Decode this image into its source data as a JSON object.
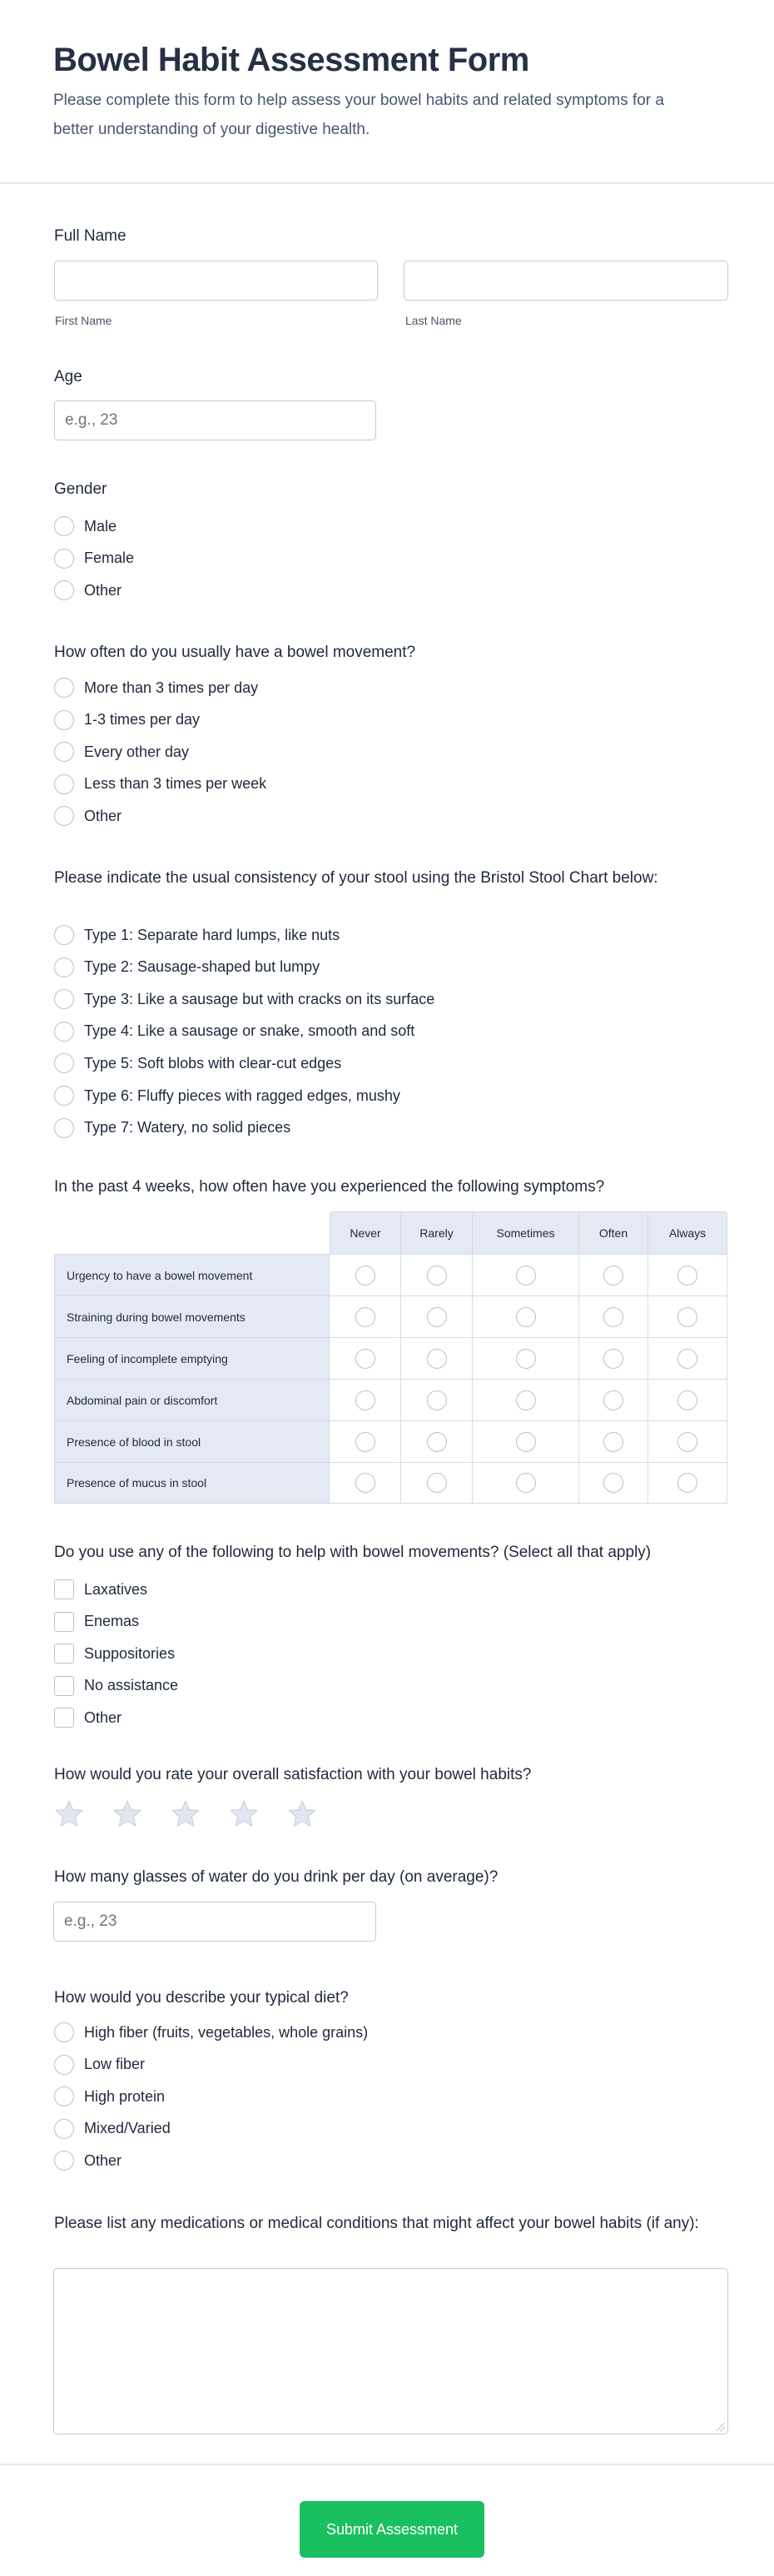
{
  "header": {
    "title": "Bowel Habit Assessment Form",
    "subtitle": "Please complete this form to help assess your bowel habits and related symptoms for a better understanding of your digestive health."
  },
  "full_name": {
    "label": "Full Name",
    "first_sublabel": "First Name",
    "last_sublabel": "Last Name",
    "first_value": "",
    "last_value": ""
  },
  "age": {
    "label": "Age",
    "placeholder": "e.g., 23"
  },
  "gender": {
    "label": "Gender",
    "options": [
      "Male",
      "Female",
      "Other"
    ]
  },
  "frequency": {
    "label": "How often do you usually have a bowel movement?",
    "options": [
      "More than 3 times per day",
      "1-3 times per day",
      "Every other day",
      "Less than 3 times per week",
      "Other"
    ]
  },
  "bristol": {
    "label": "Please indicate the usual consistency of your stool using the Bristol Stool Chart below:",
    "options": [
      "Type 1: Separate hard lumps, like nuts",
      "Type 2: Sausage-shaped but lumpy",
      "Type 3: Like a sausage but with cracks on its surface",
      "Type 4: Like a sausage or snake, smooth and soft",
      "Type 5: Soft blobs with clear-cut edges",
      "Type 6: Fluffy pieces with ragged edges, mushy",
      "Type 7: Watery, no solid pieces"
    ]
  },
  "symptoms": {
    "label": "In the past 4 weeks, how often have you experienced the following symptoms?",
    "columns": [
      "Never",
      "Rarely",
      "Sometimes",
      "Often",
      "Always"
    ],
    "rows": [
      "Urgency to have a bowel movement",
      "Straining during bowel movements",
      "Feeling of incomplete emptying",
      "Abdominal pain or discomfort",
      "Presence of blood in stool",
      "Presence of mucus in stool"
    ]
  },
  "aids": {
    "label": "Do you use any of the following to help with bowel movements? (Select all that apply)",
    "options": [
      "Laxatives",
      "Enemas",
      "Suppositories",
      "No assistance",
      "Other"
    ]
  },
  "satisfaction": {
    "label": "How would you rate your overall satisfaction with your bowel habits?",
    "max_stars": 5,
    "rating": 0,
    "star_color": "#e2e6f0"
  },
  "water": {
    "label": "How many glasses of water do you drink per day (on average)?",
    "placeholder": "e.g., 23"
  },
  "diet": {
    "label": "How would you describe your typical diet?",
    "options": [
      "High fiber (fruits, vegetables, whole grains)",
      "Low fiber",
      "High protein",
      "Mixed/Varied",
      "Other"
    ]
  },
  "medications": {
    "label": "Please list any medications or medical conditions that might affect your bowel habits (if any):",
    "value": ""
  },
  "submit": {
    "label": "Submit Assessment",
    "color": "#1abf5f"
  }
}
